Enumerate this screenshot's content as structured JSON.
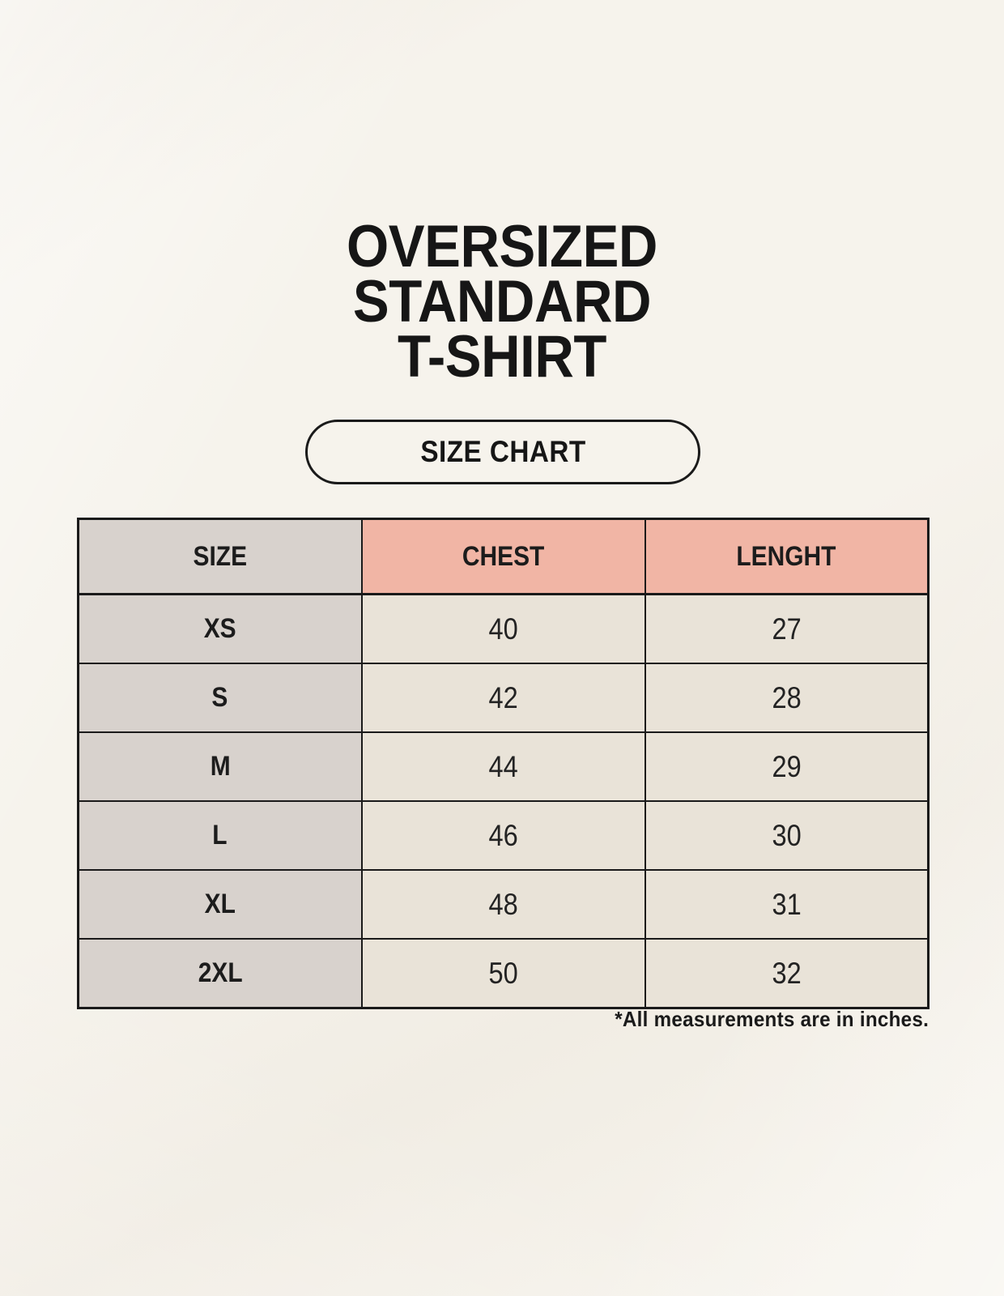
{
  "page": {
    "title_lines": [
      "OVERSIZED",
      "STANDARD",
      "T-SHIRT"
    ],
    "badge_label": "SIZE CHART",
    "footnote": "*All measurements are in inches."
  },
  "chart_data": {
    "type": "table",
    "title": "SIZE CHART",
    "columns": [
      "SIZE",
      "CHEST",
      "LENGHT"
    ],
    "rows": [
      {
        "size": "XS",
        "chest": "40",
        "length": "27"
      },
      {
        "size": "S",
        "chest": "42",
        "length": "28"
      },
      {
        "size": "M",
        "chest": "44",
        "length": "29"
      },
      {
        "size": "L",
        "chest": "46",
        "length": "30"
      },
      {
        "size": "XL",
        "chest": "48",
        "length": "31"
      },
      {
        "size": "2XL",
        "chest": "50",
        "length": "32"
      }
    ],
    "units_note": "*All measurements are in inches."
  },
  "colors": {
    "background": "#f6f3ec",
    "header_pink": "#f1b5a5",
    "size_column_gray": "#d8d2cd",
    "cell_beige": "#e9e3d8",
    "line_black": "#1a1a1a",
    "text_black": "#161616"
  }
}
